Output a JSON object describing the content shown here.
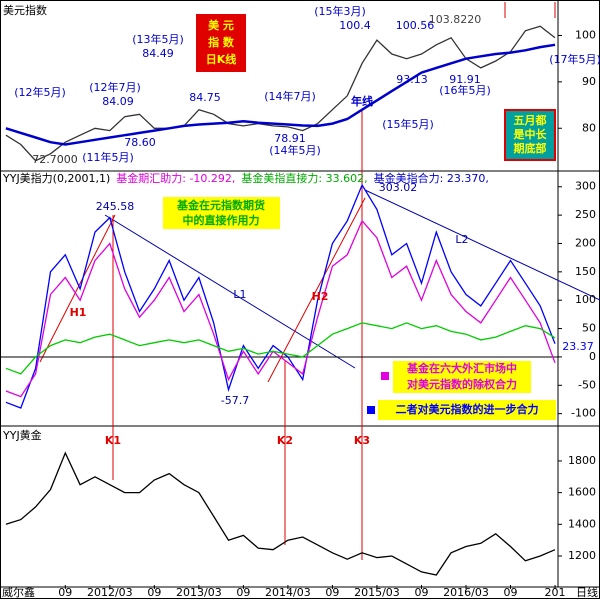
{
  "chart_data": [
    {
      "type": "line",
      "title": "美元指数",
      "x": [
        0,
        2,
        4,
        6,
        8,
        10,
        12,
        14,
        16,
        18,
        20,
        22,
        24,
        26,
        28,
        30,
        32,
        34,
        36,
        38,
        40,
        42,
        44,
        46,
        48,
        50,
        52,
        54,
        56,
        58,
        60,
        62,
        64,
        66,
        68,
        70,
        72,
        74
      ],
      "xlim": [
        -0.8,
        74.4
      ],
      "ylim": [
        71,
        107
      ],
      "yticks": [
        80,
        90,
        100
      ],
      "series": [
        {
          "color": "#333333",
          "values": [
            78.5,
            76.5,
            73,
            74.5,
            77,
            78.5,
            80,
            79.5,
            82.5,
            83,
            80,
            80,
            80.5,
            84,
            83,
            81,
            80.5,
            81,
            80.5,
            80.3,
            79.5,
            81,
            84,
            87,
            94,
            99,
            96,
            95,
            96,
            98,
            99.5,
            95,
            93,
            94.5,
            96.5,
            101,
            102,
            99.5
          ]
        },
        {
          "color": "#0000cc",
          "values": [
            80,
            79,
            78,
            77,
            76.5,
            77,
            77.5,
            78,
            78.5,
            79,
            79.5,
            80,
            80.5,
            80.8,
            81,
            81.2,
            81.5,
            81.2,
            81,
            80.8,
            80.6,
            80.5,
            81,
            82,
            84,
            86,
            88,
            90,
            92,
            93,
            94,
            95,
            95.5,
            96,
            96.3,
            96.8,
            97.5,
            98
          ]
        }
      ],
      "annotations": [
        "(15年3月)",
        "100.4",
        "100.56",
        "103.8220",
        "(13年5月)",
        "84.49",
        "(12年5月)",
        "(12年7月)",
        "84.09",
        "84.75",
        "(14年7月)",
        "78.60",
        "78.91",
        "(14年5月)",
        "72.7000",
        "(11年5月)",
        "93.13",
        "91.91",
        "(16年5月)",
        "(15年5月)",
        "年线",
        "(17年5月)",
        "美  元",
        "指  数",
        "日K线",
        "五月都",
        "是中长",
        "期底部"
      ]
    },
    {
      "type": "line",
      "header": [
        {
          "text": "YYJ美指力(0,2001,1)",
          "color": "#000000"
        },
        {
          "text": "基金期汇助力: -10.292,",
          "color": "#e000e0"
        },
        {
          "text": "基金美指直接力: 33.602,",
          "color": "#00aa00"
        },
        {
          "text": "基金美指合力: 23.370,",
          "color": "#0000cc"
        }
      ],
      "x": [
        0,
        2,
        4,
        6,
        8,
        10,
        12,
        14,
        16,
        18,
        20,
        22,
        24,
        26,
        28,
        30,
        32,
        34,
        36,
        38,
        40,
        42,
        44,
        46,
        48,
        50,
        52,
        54,
        56,
        58,
        60,
        62,
        64,
        66,
        68,
        70,
        72,
        74
      ],
      "xlim": [
        -0.8,
        74.4
      ],
      "ylim": [
        -120,
        326
      ],
      "yticks": [
        300,
        250,
        200,
        150,
        100,
        50,
        0,
        -50,
        -100
      ],
      "series": [
        {
          "color": "#0000ff",
          "values": [
            -80,
            -90,
            -20,
            150,
            180,
            120,
            220,
            245.58,
            150,
            80,
            120,
            170,
            100,
            140,
            60,
            -57.7,
            20,
            -20,
            20,
            0,
            -40,
            100,
            200,
            240,
            303.02,
            260,
            180,
            200,
            130,
            220,
            150,
            110,
            90,
            130,
            170,
            130,
            90,
            23.37
          ]
        },
        {
          "color": "#e000e0",
          "values": [
            -60,
            -70,
            -30,
            110,
            140,
            100,
            170,
            200,
            120,
            70,
            100,
            140,
            80,
            110,
            40,
            -40,
            10,
            -30,
            10,
            -10,
            -30,
            70,
            160,
            180,
            240,
            210,
            140,
            160,
            100,
            170,
            110,
            80,
            60,
            100,
            140,
            100,
            60,
            -10.292
          ]
        },
        {
          "color": "#00cc00",
          "values": [
            -20,
            -30,
            0,
            20,
            30,
            25,
            35,
            40,
            30,
            20,
            25,
            30,
            25,
            30,
            20,
            10,
            15,
            5,
            10,
            5,
            0,
            20,
            40,
            50,
            60,
            55,
            50,
            60,
            50,
            55,
            45,
            40,
            30,
            35,
            45,
            55,
            50,
            33.602
          ]
        }
      ],
      "annotations": [
        "245.58",
        "303.02",
        "-57.7",
        "L1",
        "L2",
        "H1",
        "H2",
        "基金在元指数期货",
        "中的直接作用力",
        "基金在六大外汇市场中",
        "对美元指数的除权合力",
        "二者对美元指数的进一步合力",
        "23.37"
      ]
    },
    {
      "type": "line",
      "title": "YYJ黄金",
      "x": [
        0,
        2,
        4,
        6,
        8,
        10,
        12,
        14,
        16,
        18,
        20,
        22,
        24,
        26,
        28,
        30,
        32,
        34,
        36,
        38,
        40,
        42,
        44,
        46,
        48,
        50,
        52,
        54,
        56,
        58,
        60,
        62,
        64,
        66,
        68,
        70,
        72,
        74
      ],
      "xlim": [
        -0.8,
        74.4
      ],
      "ylim": [
        1017,
        2008
      ],
      "yticks": [
        1200,
        1400,
        1600,
        1800
      ],
      "series": [
        {
          "color": "#000000",
          "values": [
            1400,
            1430,
            1510,
            1620,
            1850,
            1650,
            1700,
            1650,
            1600,
            1600,
            1680,
            1720,
            1650,
            1600,
            1450,
            1300,
            1330,
            1250,
            1240,
            1300,
            1320,
            1270,
            1220,
            1180,
            1220,
            1190,
            1200,
            1150,
            1100,
            1080,
            1220,
            1260,
            1280,
            1340,
            1260,
            1170,
            1200,
            1240
          ]
        }
      ],
      "xticks": [
        {
          "value": 8,
          "label": "09"
        },
        {
          "value": 14,
          "label": "2012/03"
        },
        {
          "value": 20,
          "label": "09"
        },
        {
          "value": 26,
          "label": "2013/03"
        },
        {
          "value": 32,
          "label": "09"
        },
        {
          "value": 38,
          "label": "2014/03"
        },
        {
          "value": 44,
          "label": "09"
        },
        {
          "value": 50,
          "label": "2015/03"
        },
        {
          "value": 56,
          "label": "09"
        },
        {
          "value": 62,
          "label": "2016/03"
        },
        {
          "value": 68,
          "label": "09"
        },
        {
          "value": 74,
          "label": "201"
        }
      ],
      "annotations": [
        "K1",
        "K2",
        "K3"
      ],
      "footer": [
        "威尔鑫",
        "日线"
      ]
    }
  ]
}
